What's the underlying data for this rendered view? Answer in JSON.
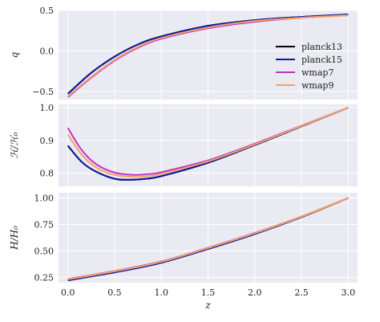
{
  "chart_data": {
    "type": "line",
    "xlabel": "z",
    "shared_x_ticks": [
      "0.0",
      "0.5",
      "1.0",
      "1.5",
      "2.0",
      "2.5",
      "3.0"
    ],
    "grid": true,
    "legend_location": "right of top panel",
    "series_styles": [
      {
        "name": "planck13",
        "color": "#000000"
      },
      {
        "name": "planck15",
        "color": "#0a1aa0"
      },
      {
        "name": "wmap7",
        "color": "#c030c8"
      },
      {
        "name": "wmap9",
        "color": "#f4a460"
      }
    ],
    "panels": [
      {
        "ylabel": "q",
        "ylim": [
          -0.6,
          0.5
        ],
        "yticks": [
          "−0.5",
          "0.0",
          "0.5"
        ],
        "series": [
          {
            "name": "planck13",
            "x": [
              0,
              0.25,
              0.5,
              0.75,
              1.0,
              1.5,
              2.0,
              2.5,
              3.0
            ],
            "y": [
              -0.53,
              -0.27,
              -0.07,
              0.08,
              0.18,
              0.31,
              0.38,
              0.42,
              0.45
            ]
          },
          {
            "name": "planck15",
            "x": [
              0,
              0.25,
              0.5,
              0.75,
              1.0,
              1.5,
              2.0,
              2.5,
              3.0
            ],
            "y": [
              -0.53,
              -0.27,
              -0.07,
              0.08,
              0.18,
              0.31,
              0.38,
              0.42,
              0.45
            ]
          },
          {
            "name": "wmap7",
            "x": [
              0,
              0.25,
              0.5,
              0.75,
              1.0,
              1.5,
              2.0,
              2.5,
              3.0
            ],
            "y": [
              -0.57,
              -0.33,
              -0.12,
              0.04,
              0.15,
              0.28,
              0.36,
              0.41,
              0.44
            ]
          },
          {
            "name": "wmap9",
            "x": [
              0,
              0.25,
              0.5,
              0.75,
              1.0,
              1.5,
              2.0,
              2.5,
              3.0
            ],
            "y": [
              -0.56,
              -0.32,
              -0.11,
              0.05,
              0.16,
              0.29,
              0.37,
              0.41,
              0.44
            ]
          }
        ]
      },
      {
        "ylabel": "ℋ/ℋ₀",
        "ylim": [
          0.76,
          1.01
        ],
        "yticks": [
          "0.8",
          "0.9",
          "1.0"
        ],
        "series": [
          {
            "name": "planck13",
            "x": [
              0,
              0.15,
              0.3,
              0.5,
              0.65,
              0.8,
              1.0,
              1.5,
              2.0,
              2.5,
              3.0
            ],
            "y": [
              0.884,
              0.834,
              0.805,
              0.783,
              0.78,
              0.782,
              0.791,
              0.832,
              0.886,
              0.943,
              1.0
            ]
          },
          {
            "name": "planck15",
            "x": [
              0,
              0.15,
              0.3,
              0.5,
              0.65,
              0.8,
              1.0,
              1.5,
              2.0,
              2.5,
              3.0
            ],
            "y": [
              0.884,
              0.834,
              0.805,
              0.783,
              0.78,
              0.782,
              0.791,
              0.832,
              0.886,
              0.943,
              1.0
            ]
          },
          {
            "name": "wmap7",
            "x": [
              0,
              0.15,
              0.3,
              0.5,
              0.7,
              0.85,
              1.0,
              1.5,
              2.0,
              2.5,
              3.0
            ],
            "y": [
              0.938,
              0.87,
              0.828,
              0.802,
              0.795,
              0.797,
              0.803,
              0.839,
              0.89,
              0.945,
              1.0
            ]
          },
          {
            "name": "wmap9",
            "x": [
              0,
              0.15,
              0.3,
              0.5,
              0.7,
              0.85,
              1.0,
              1.5,
              2.0,
              2.5,
              3.0
            ],
            "y": [
              0.918,
              0.856,
              0.818,
              0.795,
              0.789,
              0.791,
              0.798,
              0.836,
              0.888,
              0.944,
              1.0
            ]
          }
        ]
      },
      {
        "ylabel": "H/H₀",
        "ylim": [
          0.2,
          1.05
        ],
        "yticks": [
          "0.25",
          "0.50",
          "0.75",
          "1.00"
        ],
        "series": [
          {
            "name": "planck13",
            "x": [
              0,
              0.5,
              1.0,
              1.5,
              2.0,
              2.5,
              3.0
            ],
            "y": [
              0.225,
              0.3,
              0.39,
              0.52,
              0.66,
              0.82,
              1.0
            ]
          },
          {
            "name": "planck15",
            "x": [
              0,
              0.5,
              1.0,
              1.5,
              2.0,
              2.5,
              3.0
            ],
            "y": [
              0.222,
              0.297,
              0.388,
              0.518,
              0.66,
              0.82,
              1.0
            ]
          },
          {
            "name": "wmap7",
            "x": [
              0,
              0.5,
              1.0,
              1.5,
              2.0,
              2.5,
              3.0
            ],
            "y": [
              0.235,
              0.31,
              0.4,
              0.53,
              0.67,
              0.825,
              1.0
            ]
          },
          {
            "name": "wmap9",
            "x": [
              0,
              0.5,
              1.0,
              1.5,
              2.0,
              2.5,
              3.0
            ],
            "y": [
              0.232,
              0.307,
              0.397,
              0.527,
              0.667,
              0.824,
              1.0
            ]
          }
        ]
      }
    ]
  }
}
